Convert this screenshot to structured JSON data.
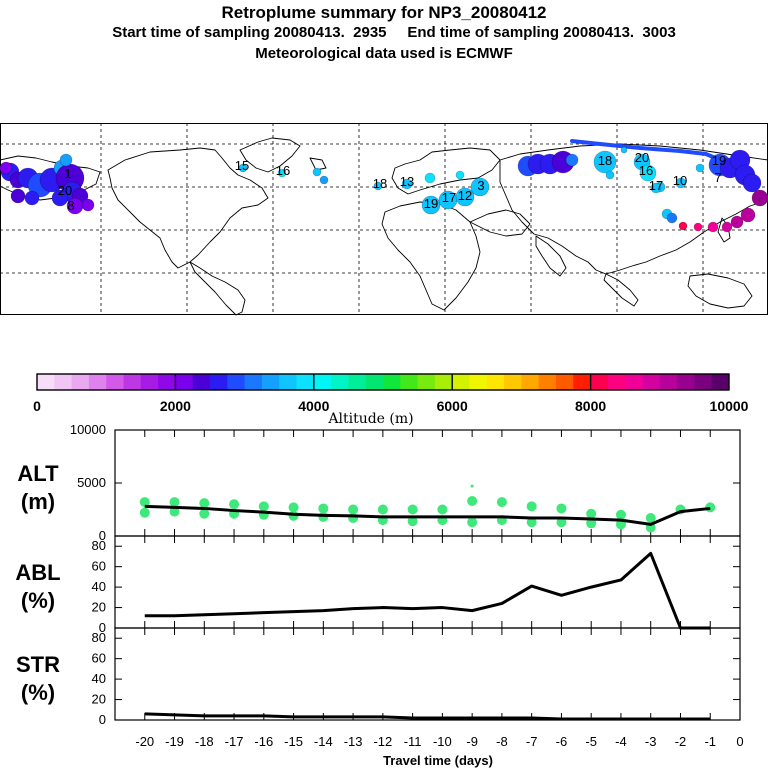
{
  "header": {
    "title": "Retroplume summary for NP3_20080412",
    "subtitle": "Start time of sampling 20080413.  2935     End time of sampling 20080413.  3003",
    "met": "Meteorological data used is ECMWF"
  },
  "colorbar": {
    "title": "Altitude (m)",
    "ticks": [
      "0",
      "2000",
      "4000",
      "6000",
      "8000",
      "10000"
    ],
    "colors": [
      "#f7ddf7",
      "#f1c6f4",
      "#eaa8f1",
      "#e082ee",
      "#d35ae9",
      "#bd38e4",
      "#a81be4",
      "#8f08e8",
      "#7a00ee",
      "#4b00d8",
      "#2c1cf2",
      "#1f4cff",
      "#1a78ff",
      "#15a0ff",
      "#10c4ff",
      "#0ce2ff",
      "#00f5f5",
      "#00f5c6",
      "#00ee99",
      "#00e670",
      "#10e63c",
      "#40e81c",
      "#78ea10",
      "#a8ee08",
      "#d4f200",
      "#f0f500",
      "#ffe600",
      "#ffc800",
      "#ffa800",
      "#ff8000",
      "#ff5a00",
      "#ff1e00",
      "#ff0050",
      "#ff0080",
      "#f00098",
      "#d400a0",
      "#b8009c",
      "#980090",
      "#7a0080",
      "#5a006a"
    ]
  },
  "map": {
    "labels": [
      {
        "text": "20",
        "fill": "#9b2ee8"
      },
      {
        "text": "1",
        "fill": "#6020e8"
      },
      {
        "text": "15",
        "fill": "#1cb0ff"
      },
      {
        "text": "16",
        "fill": "#19a4ff"
      },
      {
        "text": "18",
        "fill": "#17a0ff"
      },
      {
        "text": "13",
        "fill": "#1d8cff"
      },
      {
        "text": "19",
        "fill": "#2a58f2"
      },
      {
        "text": "17",
        "fill": "#1aa0ff"
      },
      {
        "text": "12",
        "fill": "#9a28e6"
      },
      {
        "text": "3",
        "fill": "#b038e6"
      },
      {
        "text": "8",
        "fill": "#4436e4"
      },
      {
        "text": "7",
        "fill": "#3a48ea"
      },
      {
        "text": "19",
        "fill": "#22a6ff"
      },
      {
        "text": "18",
        "fill": "#20a8ff"
      },
      {
        "text": "20",
        "fill": "#1c96ff"
      },
      {
        "text": "16",
        "fill": "#14b4ff"
      },
      {
        "text": "17",
        "fill": "#18a8ff"
      },
      {
        "text": "10",
        "fill": "#4040e6"
      }
    ]
  },
  "chart_data": [
    {
      "type": "line",
      "panel": "ALT",
      "ylabel": "ALT\n(m)",
      "ylim": [
        0,
        10000
      ],
      "yticks": [
        "10000",
        "5000",
        "0"
      ],
      "x": [
        -20,
        -19,
        -18,
        -17,
        -16,
        -15,
        -14,
        -13,
        -12,
        -11,
        -10,
        -9,
        -8,
        -7,
        -6,
        -5,
        -4,
        -3,
        -2,
        -1
      ],
      "values": [
        2800,
        2700,
        2600,
        2400,
        2250,
        2050,
        1950,
        1900,
        1800,
        1800,
        1800,
        1800,
        1800,
        1700,
        1700,
        1600,
        1500,
        1100,
        2300,
        2600
      ],
      "scatter_x": [
        -20,
        -20,
        -19,
        -19,
        -18,
        -18,
        -17,
        -17,
        -16,
        -16,
        -15,
        -15,
        -14,
        -14,
        -13,
        -13,
        -12,
        -12,
        -11,
        -11,
        -10,
        -10,
        -9,
        -9,
        -9,
        -8,
        -8,
        -7,
        -7,
        -6,
        -6,
        -5,
        -5,
        -4,
        -4,
        -3,
        -3,
        -2,
        -1
      ],
      "scatter_y": [
        3200,
        2200,
        3200,
        2300,
        3100,
        2100,
        3000,
        2100,
        2800,
        2000,
        2700,
        1900,
        2600,
        1800,
        2500,
        1700,
        2500,
        1500,
        2500,
        1400,
        2500,
        1500,
        4700,
        3300,
        1300,
        3200,
        1500,
        2800,
        1300,
        2600,
        1300,
        2100,
        1200,
        2000,
        1100,
        1700,
        800,
        2500,
        2700
      ],
      "series_color": "#000000",
      "points_color": "#3ee87a"
    },
    {
      "type": "line",
      "panel": "ABL",
      "ylabel": "ABL\n(%)",
      "ylim": [
        0,
        90
      ],
      "yticks": [
        "80",
        "60",
        "40",
        "20",
        "0"
      ],
      "x": [
        -20,
        -19,
        -18,
        -17,
        -16,
        -15,
        -14,
        -13,
        -12,
        -11,
        -10,
        -9,
        -8,
        -7,
        -6,
        -5,
        -4,
        -3,
        -2,
        -1
      ],
      "values": [
        12,
        12,
        13,
        14,
        15,
        16,
        17,
        19,
        20,
        19,
        20,
        17,
        24,
        41,
        32,
        40,
        47,
        73,
        0,
        0
      ]
    },
    {
      "type": "line",
      "panel": "STR",
      "ylabel": "STR\n(%)",
      "ylim": [
        0,
        90
      ],
      "yticks": [
        "80",
        "60",
        "40",
        "20",
        "0"
      ],
      "x": [
        -20,
        -19,
        -18,
        -17,
        -16,
        -15,
        -14,
        -13,
        -12,
        -11,
        -10,
        -9,
        -8,
        -7,
        -6,
        -5,
        -4,
        -3,
        -2,
        -1
      ],
      "values": [
        6,
        5,
        4,
        4,
        4,
        3,
        3,
        3,
        3,
        2,
        2,
        2,
        2,
        2,
        1,
        1,
        1,
        1,
        1,
        1
      ]
    }
  ],
  "xaxis": {
    "label": "Travel time (days)",
    "ticks": [
      "-20",
      "-19",
      "-18",
      "-17",
      "-16",
      "-15",
      "-14",
      "-13",
      "-12",
      "-11",
      "-10",
      "-9",
      "-8",
      "-7",
      "-6",
      "-5",
      "-4",
      "-3",
      "-2",
      "-1",
      "0"
    ],
    "domain": [
      -21,
      0
    ]
  }
}
